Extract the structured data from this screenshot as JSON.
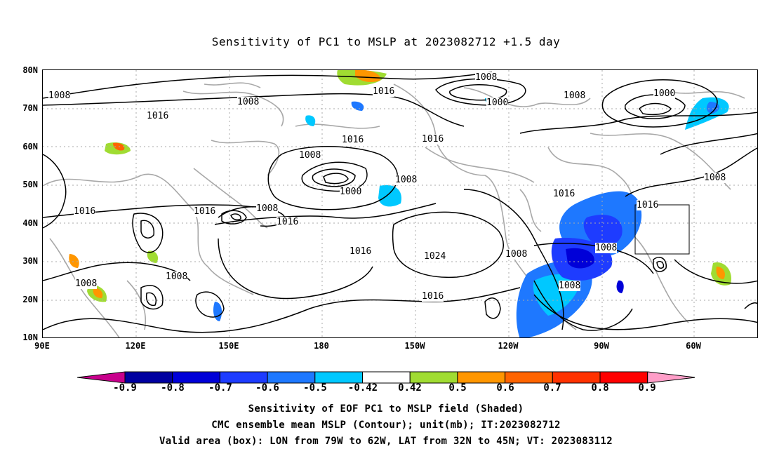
{
  "title": "Sensitivity of PC1 to MSLP at 2023082712 +1.5 day",
  "lat_labels": [
    "80N",
    "70N",
    "60N",
    "50N",
    "40N",
    "30N",
    "20N",
    "10N"
  ],
  "lon_labels": [
    "90E",
    "120E",
    "150E",
    "180",
    "150W",
    "120W",
    "90W",
    "60W"
  ],
  "colorbar": {
    "labels": [
      "-0.9",
      "-0.8",
      "-0.7",
      "-0.6",
      "-0.5",
      "-0.42",
      "0.42",
      "0.5",
      "0.6",
      "0.7",
      "0.8",
      "0.9"
    ],
    "colors": [
      "#c8008c",
      "#0000a0",
      "#0000d8",
      "#1e3cff",
      "#1e78ff",
      "#00c8ff",
      "#ffffff",
      "#a0dc32",
      "#ff9600",
      "#ff6400",
      "#ff3200",
      "#ff0000",
      "#ff9ec8"
    ]
  },
  "contour_labels": [
    "1008",
    "1016",
    "1000",
    "1024"
  ],
  "valid_box": {
    "lon_from": "79W",
    "lon_to": "62W",
    "lat_from": "32N",
    "lat_to": "45N"
  },
  "captions": [
    "Sensitivity of EOF PC1 to MSLP field (Shaded)",
    "CMC ensemble mean MSLP (Contour); unit(mb); IT:2023082712",
    "Valid area (box): LON from 79W to 62W, LAT from 32N to 45N; VT: 2023083112"
  ]
}
